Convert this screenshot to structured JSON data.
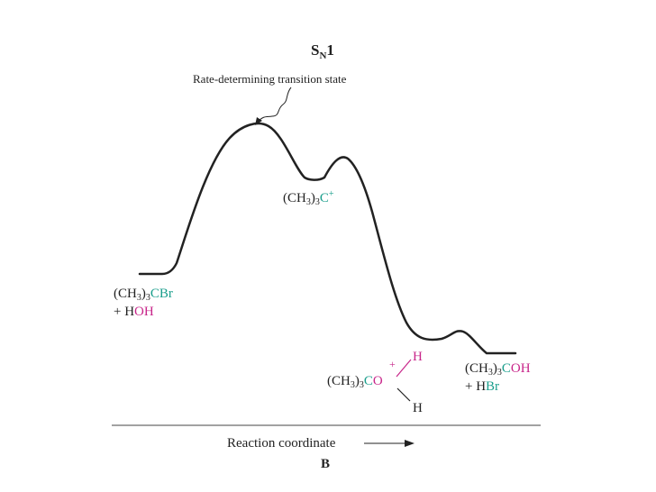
{
  "title": {
    "main": "S",
    "sub": "N",
    "suffix": "1"
  },
  "annotation": {
    "text": "Rate-determining transition state"
  },
  "reactant": {
    "line1": {
      "prefix": "(CH",
      "sub1": "3",
      "mid": ")",
      "sub2": "3",
      "atom": "CBr"
    },
    "line2": {
      "plus": "+ H",
      "atom": "OH"
    }
  },
  "intermediate_cation": {
    "prefix": "(CH",
    "sub1": "3",
    "mid": ")",
    "sub2": "3",
    "atom": "C",
    "charge": "+"
  },
  "oxonium": {
    "prefix": "(CH",
    "sub1": "3",
    "mid": ")",
    "sub2": "3",
    "c": "C",
    "o": "O",
    "charge": "+",
    "h_top": "H",
    "h_bottom": "H"
  },
  "product": {
    "line1": {
      "prefix": "(CH",
      "sub1": "3",
      "mid": ")",
      "sub2": "3",
      "c": "C",
      "oh": "OH"
    },
    "line2": {
      "plus": "+ H",
      "br": "Br"
    }
  },
  "x_axis": {
    "label": "Reaction coordinate"
  },
  "panel_label": "B",
  "colors": {
    "teal": "#1a9e8c",
    "magenta": "#c8268a",
    "line": "#222222"
  }
}
